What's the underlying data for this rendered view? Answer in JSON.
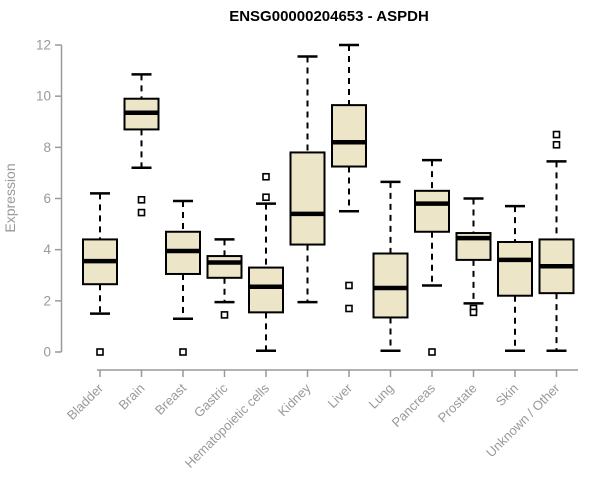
{
  "title": "ENSG00000204653 - ASPDH",
  "chart_data": {
    "type": "boxplot",
    "title": "ENSG00000204653 - ASPDH",
    "xlabel": "",
    "ylabel": "Expression",
    "ylim": [
      0,
      12
    ],
    "yticks": [
      0,
      2,
      4,
      6,
      8,
      10,
      12
    ],
    "grid": false,
    "legend": "none",
    "box_fill_color": "#ece5c8",
    "box_border_color": "#000000",
    "axis_color": "#999999",
    "categories": [
      "Bladder",
      "Brain",
      "Breast",
      "Gastric",
      "Hematopoietic cells",
      "Kidney",
      "Liver",
      "Lung",
      "Pancreas",
      "Prostate",
      "Skin",
      "Unknown / Other"
    ],
    "series": [
      {
        "name": "Bladder",
        "whisker_low": 1.5,
        "q1": 2.65,
        "median": 3.55,
        "q3": 4.4,
        "whisker_high": 6.2,
        "outliers": [
          0
        ]
      },
      {
        "name": "Brain",
        "whisker_low": 7.2,
        "q1": 8.7,
        "median": 9.35,
        "q3": 9.9,
        "whisker_high": 10.85,
        "outliers": [
          5.95,
          5.45
        ]
      },
      {
        "name": "Breast",
        "whisker_low": 1.3,
        "q1": 3.05,
        "median": 3.95,
        "q3": 4.7,
        "whisker_high": 5.9,
        "outliers": [
          0
        ]
      },
      {
        "name": "Gastric",
        "whisker_low": 1.95,
        "q1": 2.9,
        "median": 3.5,
        "q3": 3.75,
        "whisker_high": 4.4,
        "outliers": [
          1.45
        ]
      },
      {
        "name": "Hematopoietic cells",
        "whisker_low": 0.05,
        "q1": 1.55,
        "median": 2.55,
        "q3": 3.3,
        "whisker_high": 5.8,
        "outliers": [
          6.85,
          6.05
        ]
      },
      {
        "name": "Kidney",
        "whisker_low": 1.95,
        "q1": 4.2,
        "median": 5.4,
        "q3": 7.8,
        "whisker_high": 11.55,
        "outliers": []
      },
      {
        "name": "Liver",
        "whisker_low": 5.5,
        "q1": 7.25,
        "median": 8.2,
        "q3": 9.65,
        "whisker_high": 12.0,
        "outliers": [
          2.6,
          1.7
        ]
      },
      {
        "name": "Lung",
        "whisker_low": 0.05,
        "q1": 1.35,
        "median": 2.5,
        "q3": 3.85,
        "whisker_high": 6.65,
        "outliers": []
      },
      {
        "name": "Pancreas",
        "whisker_low": 2.6,
        "q1": 4.7,
        "median": 5.8,
        "q3": 6.3,
        "whisker_high": 7.5,
        "outliers": [
          0
        ]
      },
      {
        "name": "Prostate",
        "whisker_low": 1.9,
        "q1": 3.6,
        "median": 4.45,
        "q3": 4.65,
        "whisker_high": 6.0,
        "outliers": [
          1.7,
          1.55
        ]
      },
      {
        "name": "Skin",
        "whisker_low": 0.05,
        "q1": 2.2,
        "median": 3.6,
        "q3": 4.3,
        "whisker_high": 5.7,
        "outliers": []
      },
      {
        "name": "Unknown / Other",
        "whisker_low": 0.05,
        "q1": 2.3,
        "median": 3.35,
        "q3": 4.4,
        "whisker_high": 7.45,
        "outliers": [
          8.5,
          8.1
        ]
      }
    ]
  }
}
